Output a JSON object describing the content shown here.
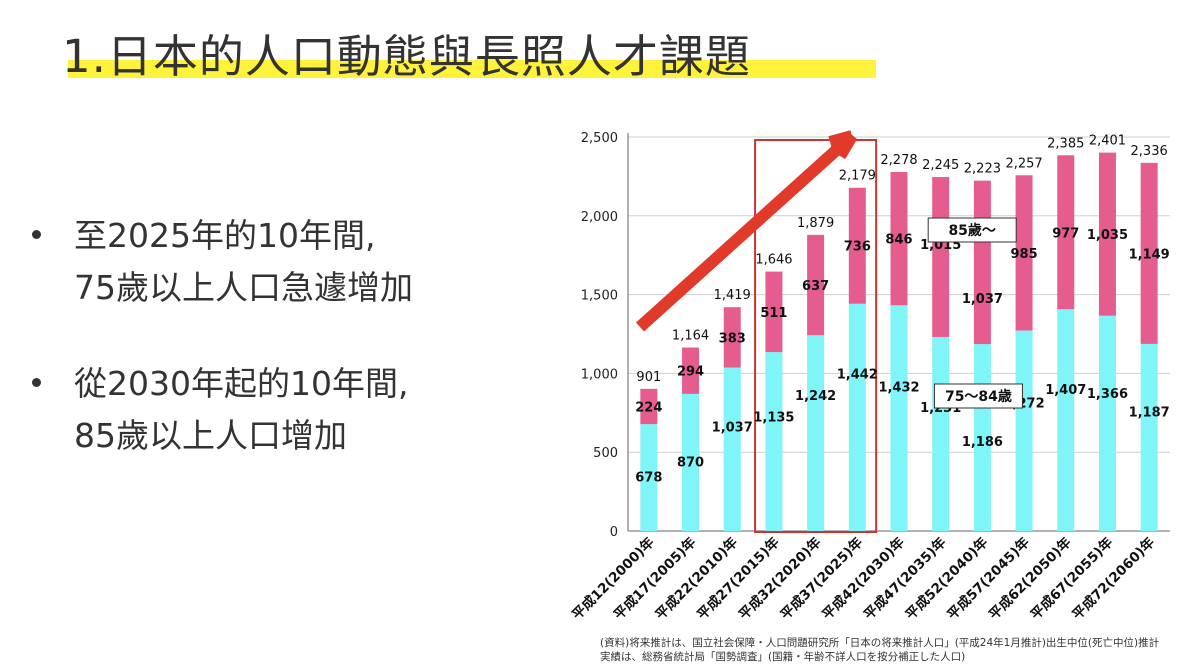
{
  "header": {
    "title": "1.日本的人口動態與長照人才課題"
  },
  "bullets": [
    {
      "lines": [
        "至2025年的10年間,",
        "75歲以上人口急遽增加"
      ]
    },
    {
      "lines": [
        "從2030年起的10年間,",
        "85歲以上人口增加"
      ]
    }
  ],
  "source": {
    "line1": "(資料)将来推計は、国立社会保障・人口問題研究所「日本の将来推計人口」(平成24年1月推計)出生中位(死亡中位)推計",
    "line2": "実績は、総務省統計局「国勢調査」(国籍・年齢不詳人口を按分補正した人口)"
  },
  "colors": {
    "age75_84": "#7ff5f7",
    "age85plus": "#e55d8f",
    "highlight_box": "#c8362f",
    "arrow": "#e23a2a",
    "title_highlight": "#fff23a"
  },
  "chart_data": {
    "type": "bar",
    "stacked": true,
    "categories": [
      "平成12(2000)年",
      "平成17(2005)年",
      "平成22(2010)年",
      "平成27(2015)年",
      "平成32(2020)年",
      "平成37(2025)年",
      "平成42(2030)年",
      "平成47(2035)年",
      "平成52(2040)年",
      "平成57(2045)年",
      "平成62(2050)年",
      "平成67(2055)年",
      "平成72(2060)年"
    ],
    "series": [
      {
        "name": "75〜84歳",
        "values": [
          678,
          870,
          1037,
          1135,
          1242,
          1442,
          1432,
          1231,
          1186,
          1272,
          1407,
          1366,
          1187
        ]
      },
      {
        "name": "85歲〜",
        "values": [
          224,
          294,
          383,
          511,
          637,
          736,
          846,
          1015,
          1037,
          985,
          977,
          1035,
          1149
        ]
      }
    ],
    "totals": [
      901,
      1164,
      1419,
      1646,
      1879,
      2179,
      2278,
      2245,
      2223,
      2257,
      2385,
      2401,
      2336
    ],
    "yticks": [
      0,
      500,
      1000,
      1500,
      2000,
      2500
    ],
    "ylim": [
      0,
      2500
    ],
    "grid": true,
    "highlight_range": [
      3,
      5
    ]
  }
}
